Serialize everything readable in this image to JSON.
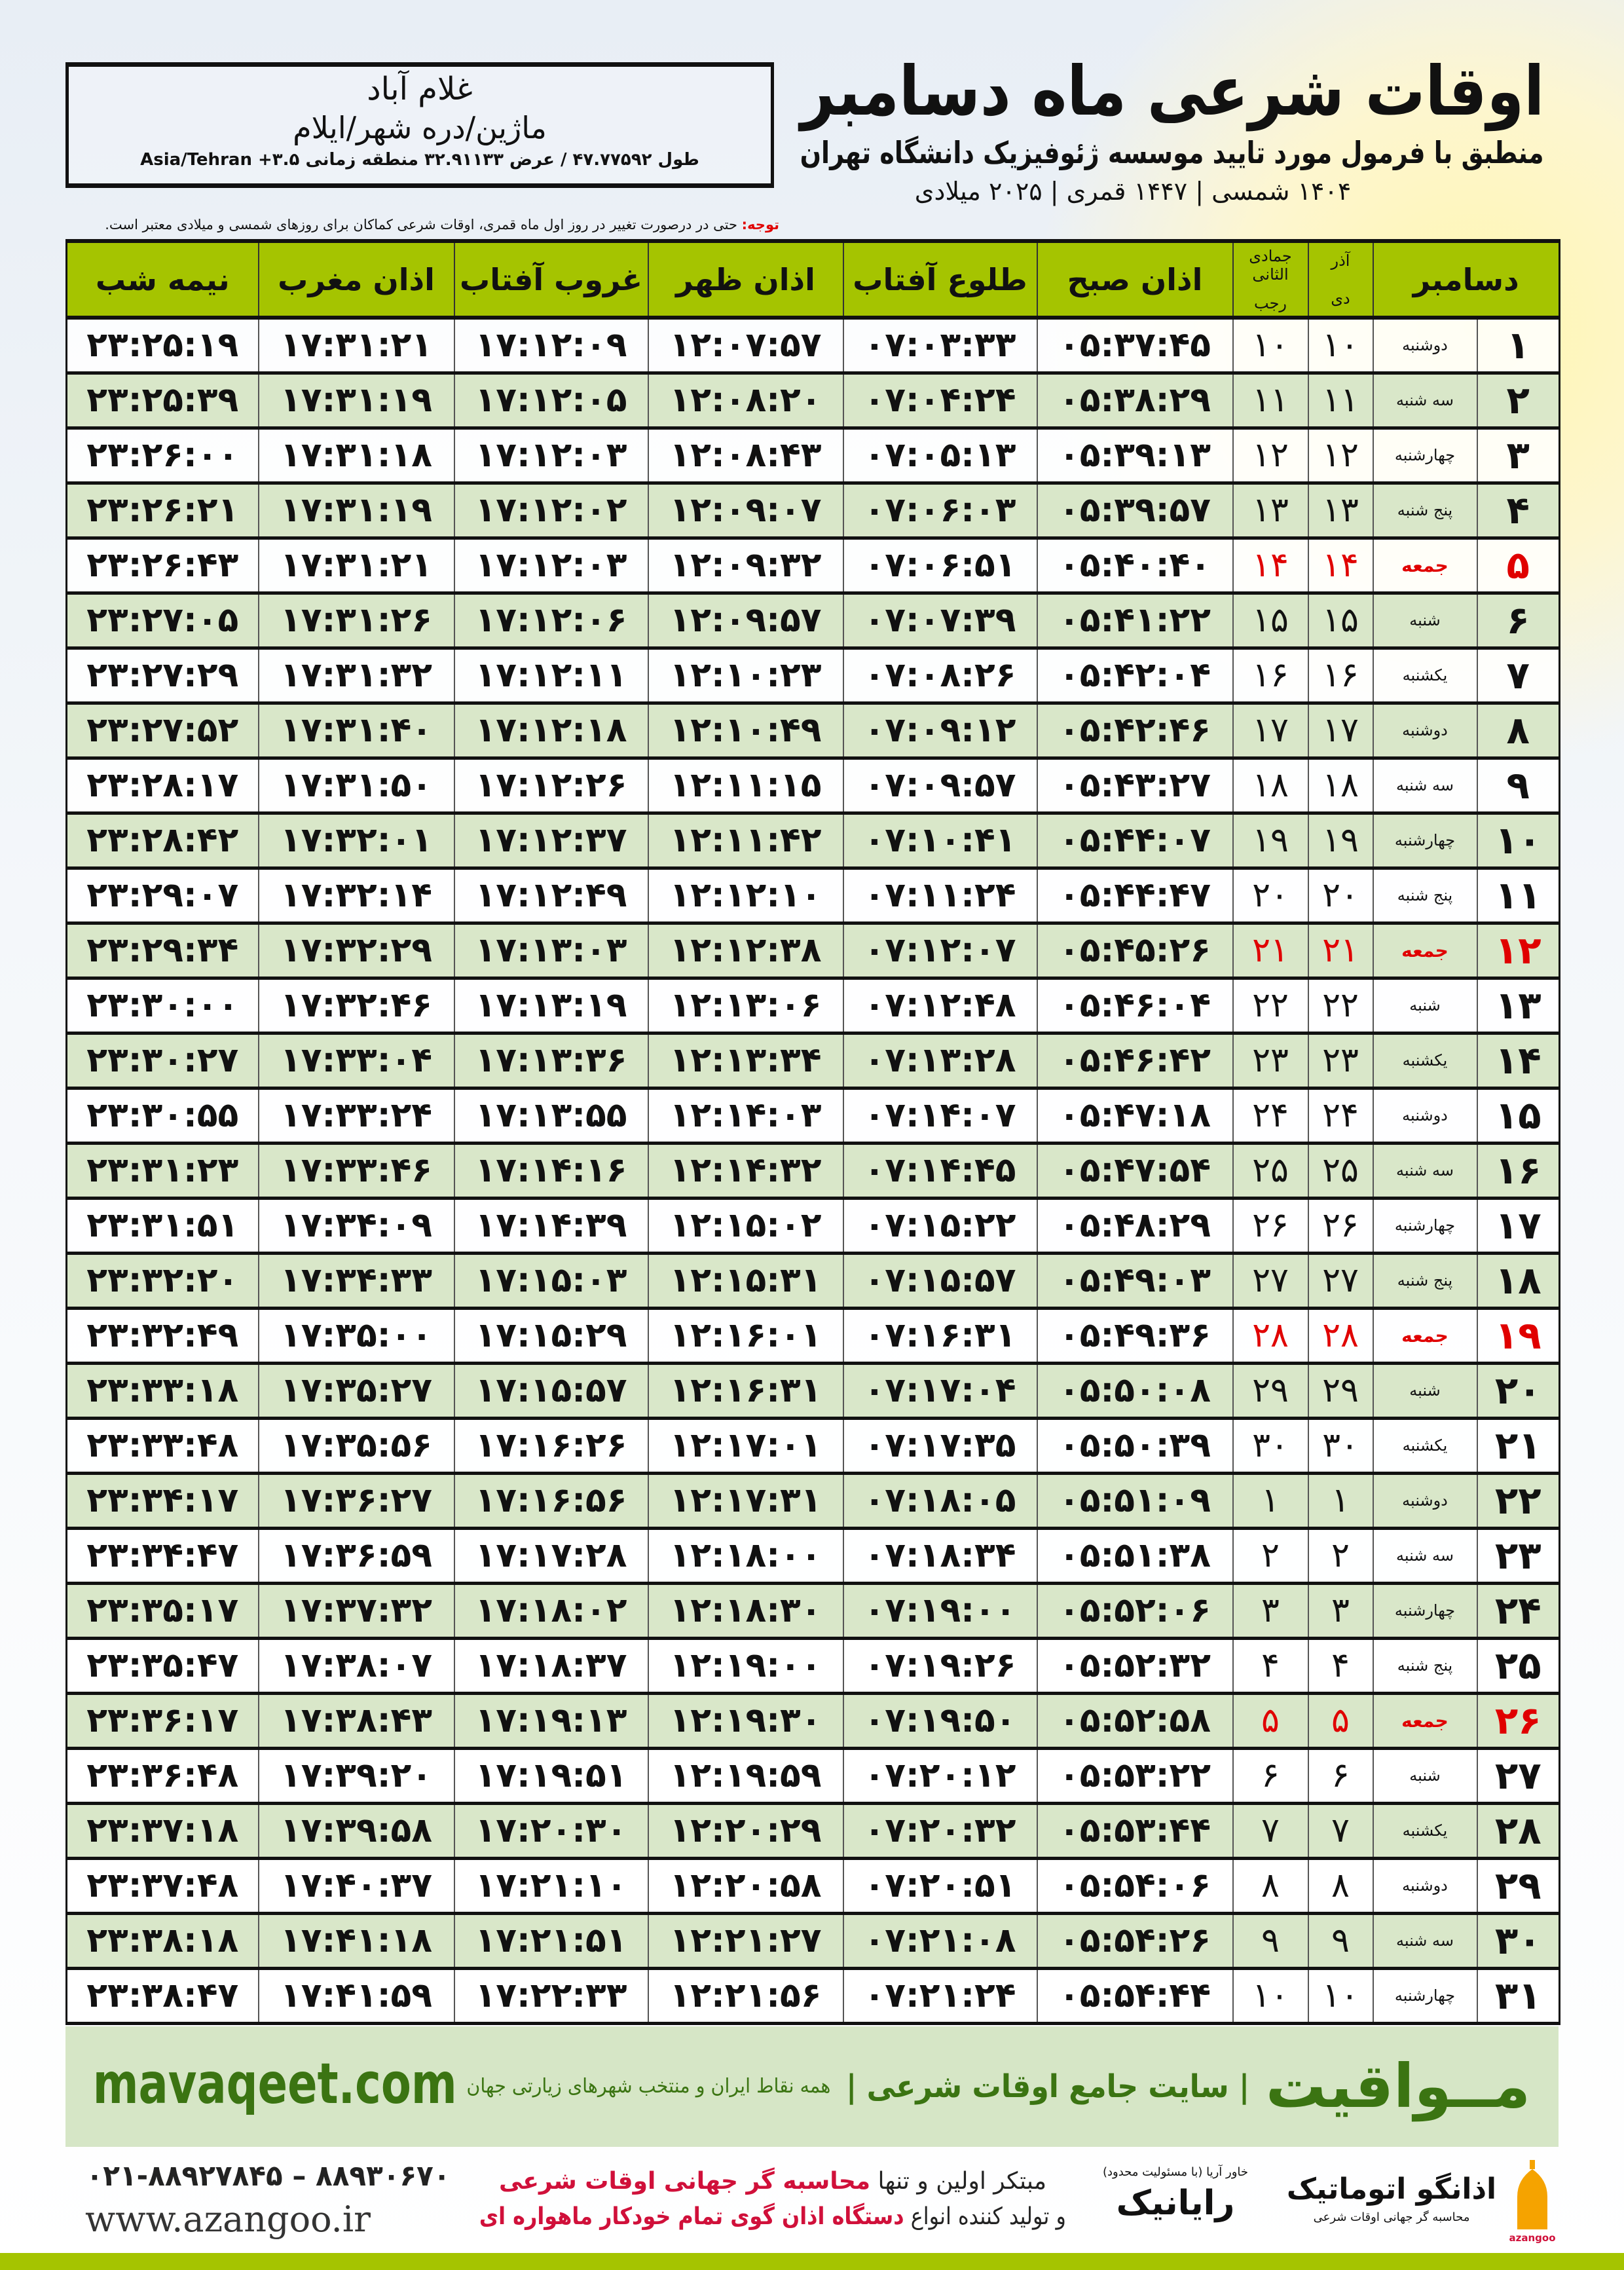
{
  "location": {
    "city": "غلام آباد",
    "region": "ماژین/دره شهر/ایلام",
    "coords": "طول ۴۷.۷۷۵۹۲ / عرض ۳۲.۹۱۱۳۳ منطقه زمانی ۳.۵+ Asia/Tehran"
  },
  "header": {
    "title": "اوقات شرعی ماه دسامبر",
    "subtitle": "منطبق با فرمول مورد تایید موسسه ژئوفیزیک دانشگاه تهران",
    "years": "۱۴۰۴ شمسی | ۱۴۴۷ قمری | ۲۰۲۵ میلادی"
  },
  "note": {
    "label": "توجه:",
    "text": " حتی در درصورت تغییر در روز اول ماه قمری، اوقات شرعی کماکان برای روزهای شمسی و میلادی معتبر است."
  },
  "table": {
    "columns": {
      "month": "دسامبر",
      "dey": "دی",
      "azar": "آذر",
      "jumada": "جمادی الثانی",
      "rajab": "رجب",
      "fajr": "اذان صبح",
      "sunrise": "طلوع آفتاب",
      "dhuhr": "اذان ظهر",
      "sunset": "غروب آفتاب",
      "maghrib": "اذان مغرب",
      "midnight": "نیمه شب"
    },
    "holiday_color": "#e00000",
    "header_color": "#a5c400",
    "rows": [
      [
        "۱",
        "دوشنبه",
        "۱۰",
        "۱۰",
        "۰۵:۳۷:۴۵",
        "۰۷:۰۳:۳۳",
        "۱۲:۰۷:۵۷",
        "۱۷:۱۲:۰۹",
        "۱۷:۳۱:۲۱",
        "۲۳:۲۵:۱۹",
        false
      ],
      [
        "۲",
        "سه شنبه",
        "۱۱",
        "۱۱",
        "۰۵:۳۸:۲۹",
        "۰۷:۰۴:۲۴",
        "۱۲:۰۸:۲۰",
        "۱۷:۱۲:۰۵",
        "۱۷:۳۱:۱۹",
        "۲۳:۲۵:۳۹",
        false
      ],
      [
        "۳",
        "چهارشنبه",
        "۱۲",
        "۱۲",
        "۰۵:۳۹:۱۳",
        "۰۷:۰۵:۱۳",
        "۱۲:۰۸:۴۳",
        "۱۷:۱۲:۰۳",
        "۱۷:۳۱:۱۸",
        "۲۳:۲۶:۰۰",
        false
      ],
      [
        "۴",
        "پنج شنبه",
        "۱۳",
        "۱۳",
        "۰۵:۳۹:۵۷",
        "۰۷:۰۶:۰۳",
        "۱۲:۰۹:۰۷",
        "۱۷:۱۲:۰۲",
        "۱۷:۳۱:۱۹",
        "۲۳:۲۶:۲۱",
        false
      ],
      [
        "۵",
        "جمعه",
        "۱۴",
        "۱۴",
        "۰۵:۴۰:۴۰",
        "۰۷:۰۶:۵۱",
        "۱۲:۰۹:۳۲",
        "۱۷:۱۲:۰۳",
        "۱۷:۳۱:۲۱",
        "۲۳:۲۶:۴۳",
        true
      ],
      [
        "۶",
        "شنبه",
        "۱۵",
        "۱۵",
        "۰۵:۴۱:۲۲",
        "۰۷:۰۷:۳۹",
        "۱۲:۰۹:۵۷",
        "۱۷:۱۲:۰۶",
        "۱۷:۳۱:۲۶",
        "۲۳:۲۷:۰۵",
        false
      ],
      [
        "۷",
        "یکشنبه",
        "۱۶",
        "۱۶",
        "۰۵:۴۲:۰۴",
        "۰۷:۰۸:۲۶",
        "۱۲:۱۰:۲۳",
        "۱۷:۱۲:۱۱",
        "۱۷:۳۱:۳۲",
        "۲۳:۲۷:۲۹",
        false
      ],
      [
        "۸",
        "دوشنبه",
        "۱۷",
        "۱۷",
        "۰۵:۴۲:۴۶",
        "۰۷:۰۹:۱۲",
        "۱۲:۱۰:۴۹",
        "۱۷:۱۲:۱۸",
        "۱۷:۳۱:۴۰",
        "۲۳:۲۷:۵۲",
        false
      ],
      [
        "۹",
        "سه شنبه",
        "۱۸",
        "۱۸",
        "۰۵:۴۳:۲۷",
        "۰۷:۰۹:۵۷",
        "۱۲:۱۱:۱۵",
        "۱۷:۱۲:۲۶",
        "۱۷:۳۱:۵۰",
        "۲۳:۲۸:۱۷",
        false
      ],
      [
        "۱۰",
        "چهارشنبه",
        "۱۹",
        "۱۹",
        "۰۵:۴۴:۰۷",
        "۰۷:۱۰:۴۱",
        "۱۲:۱۱:۴۲",
        "۱۷:۱۲:۳۷",
        "۱۷:۳۲:۰۱",
        "۲۳:۲۸:۴۲",
        false
      ],
      [
        "۱۱",
        "پنج شنبه",
        "۲۰",
        "۲۰",
        "۰۵:۴۴:۴۷",
        "۰۷:۱۱:۲۴",
        "۱۲:۱۲:۱۰",
        "۱۷:۱۲:۴۹",
        "۱۷:۳۲:۱۴",
        "۲۳:۲۹:۰۷",
        false
      ],
      [
        "۱۲",
        "جمعه",
        "۲۱",
        "۲۱",
        "۰۵:۴۵:۲۶",
        "۰۷:۱۲:۰۷",
        "۱۲:۱۲:۳۸",
        "۱۷:۱۳:۰۳",
        "۱۷:۳۲:۲۹",
        "۲۳:۲۹:۳۴",
        true
      ],
      [
        "۱۳",
        "شنبه",
        "۲۲",
        "۲۲",
        "۰۵:۴۶:۰۴",
        "۰۷:۱۲:۴۸",
        "۱۲:۱۳:۰۶",
        "۱۷:۱۳:۱۹",
        "۱۷:۳۲:۴۶",
        "۲۳:۳۰:۰۰",
        false
      ],
      [
        "۱۴",
        "یکشنبه",
        "۲۳",
        "۲۳",
        "۰۵:۴۶:۴۲",
        "۰۷:۱۳:۲۸",
        "۱۲:۱۳:۳۴",
        "۱۷:۱۳:۳۶",
        "۱۷:۳۳:۰۴",
        "۲۳:۳۰:۲۷",
        false
      ],
      [
        "۱۵",
        "دوشنبه",
        "۲۴",
        "۲۴",
        "۰۵:۴۷:۱۸",
        "۰۷:۱۴:۰۷",
        "۱۲:۱۴:۰۳",
        "۱۷:۱۳:۵۵",
        "۱۷:۳۳:۲۴",
        "۲۳:۳۰:۵۵",
        false
      ],
      [
        "۱۶",
        "سه شنبه",
        "۲۵",
        "۲۵",
        "۰۵:۴۷:۵۴",
        "۰۷:۱۴:۴۵",
        "۱۲:۱۴:۳۲",
        "۱۷:۱۴:۱۶",
        "۱۷:۳۳:۴۶",
        "۲۳:۳۱:۲۳",
        false
      ],
      [
        "۱۷",
        "چهارشنبه",
        "۲۶",
        "۲۶",
        "۰۵:۴۸:۲۹",
        "۰۷:۱۵:۲۲",
        "۱۲:۱۵:۰۲",
        "۱۷:۱۴:۳۹",
        "۱۷:۳۴:۰۹",
        "۲۳:۳۱:۵۱",
        false
      ],
      [
        "۱۸",
        "پنج شنبه",
        "۲۷",
        "۲۷",
        "۰۵:۴۹:۰۳",
        "۰۷:۱۵:۵۷",
        "۱۲:۱۵:۳۱",
        "۱۷:۱۵:۰۳",
        "۱۷:۳۴:۳۳",
        "۲۳:۳۲:۲۰",
        false
      ],
      [
        "۱۹",
        "جمعه",
        "۲۸",
        "۲۸",
        "۰۵:۴۹:۳۶",
        "۰۷:۱۶:۳۱",
        "۱۲:۱۶:۰۱",
        "۱۷:۱۵:۲۹",
        "۱۷:۳۵:۰۰",
        "۲۳:۳۲:۴۹",
        true
      ],
      [
        "۲۰",
        "شنبه",
        "۲۹",
        "۲۹",
        "۰۵:۵۰:۰۸",
        "۰۷:۱۷:۰۴",
        "۱۲:۱۶:۳۱",
        "۱۷:۱۵:۵۷",
        "۱۷:۳۵:۲۷",
        "۲۳:۳۳:۱۸",
        false
      ],
      [
        "۲۱",
        "یکشنبه",
        "۳۰",
        "۳۰",
        "۰۵:۵۰:۳۹",
        "۰۷:۱۷:۳۵",
        "۱۲:۱۷:۰۱",
        "۱۷:۱۶:۲۶",
        "۱۷:۳۵:۵۶",
        "۲۳:۳۳:۴۸",
        false
      ],
      [
        "۲۲",
        "دوشنبه",
        "۱",
        "۱",
        "۰۵:۵۱:۰۹",
        "۰۷:۱۸:۰۵",
        "۱۲:۱۷:۳۱",
        "۱۷:۱۶:۵۶",
        "۱۷:۳۶:۲۷",
        "۲۳:۳۴:۱۷",
        false
      ],
      [
        "۲۳",
        "سه شنبه",
        "۲",
        "۲",
        "۰۵:۵۱:۳۸",
        "۰۷:۱۸:۳۴",
        "۱۲:۱۸:۰۰",
        "۱۷:۱۷:۲۸",
        "۱۷:۳۶:۵۹",
        "۲۳:۳۴:۴۷",
        false
      ],
      [
        "۲۴",
        "چهارشنبه",
        "۳",
        "۳",
        "۰۵:۵۲:۰۶",
        "۰۷:۱۹:۰۰",
        "۱۲:۱۸:۳۰",
        "۱۷:۱۸:۰۲",
        "۱۷:۳۷:۳۲",
        "۲۳:۳۵:۱۷",
        false
      ],
      [
        "۲۵",
        "پنج شنبه",
        "۴",
        "۴",
        "۰۵:۵۲:۳۲",
        "۰۷:۱۹:۲۶",
        "۱۲:۱۹:۰۰",
        "۱۷:۱۸:۳۷",
        "۱۷:۳۸:۰۷",
        "۲۳:۳۵:۴۷",
        false
      ],
      [
        "۲۶",
        "جمعه",
        "۵",
        "۵",
        "۰۵:۵۲:۵۸",
        "۰۷:۱۹:۵۰",
        "۱۲:۱۹:۳۰",
        "۱۷:۱۹:۱۳",
        "۱۷:۳۸:۴۳",
        "۲۳:۳۶:۱۷",
        true
      ],
      [
        "۲۷",
        "شنبه",
        "۶",
        "۶",
        "۰۵:۵۳:۲۲",
        "۰۷:۲۰:۱۲",
        "۱۲:۱۹:۵۹",
        "۱۷:۱۹:۵۱",
        "۱۷:۳۹:۲۰",
        "۲۳:۳۶:۴۸",
        false
      ],
      [
        "۲۸",
        "یکشنبه",
        "۷",
        "۷",
        "۰۵:۵۳:۴۴",
        "۰۷:۲۰:۳۲",
        "۱۲:۲۰:۲۹",
        "۱۷:۲۰:۳۰",
        "۱۷:۳۹:۵۸",
        "۲۳:۳۷:۱۸",
        false
      ],
      [
        "۲۹",
        "دوشنبه",
        "۸",
        "۸",
        "۰۵:۵۴:۰۶",
        "۰۷:۲۰:۵۱",
        "۱۲:۲۰:۵۸",
        "۱۷:۲۱:۱۰",
        "۱۷:۴۰:۳۷",
        "۲۳:۳۷:۴۸",
        false
      ],
      [
        "۳۰",
        "سه شنبه",
        "۹",
        "۹",
        "۰۵:۵۴:۲۶",
        "۰۷:۲۱:۰۸",
        "۱۲:۲۱:۲۷",
        "۱۷:۲۱:۵۱",
        "۱۷:۴۱:۱۸",
        "۲۳:۳۸:۱۸",
        false
      ],
      [
        "۳۱",
        "چهارشنبه",
        "۱۰",
        "۱۰",
        "۰۵:۵۴:۴۴",
        "۰۷:۲۱:۲۴",
        "۱۲:۲۱:۵۶",
        "۱۷:۲۲:۳۳",
        "۱۷:۴۱:۵۹",
        "۲۳:۳۸:۴۷",
        false
      ]
    ]
  },
  "banner": {
    "brand": "مــواقیت",
    "slogan": "| سایت جامع اوقات شرعی |",
    "slogan2": "همه نقاط ایران و منتخب شهرهای زیارتی جهان",
    "site": "mavaqeet.com",
    "color": "#3b7412"
  },
  "footer": {
    "phone": "۰۲۱-۸۸۹۲۷۸۴۵ – ۸۸۹۳۰۶۷۰",
    "website": "www.azangoo.ir",
    "ad_line1_a": "مبتکر اولین و تنها ",
    "ad_line1_b": "محاسبه گر جهانی اوقات شرعی",
    "ad_line2_a": "و تولید کننده انواع ",
    "ad_line2_b": "دستگاه اذان گوی تمام خودکار ماهواره ای",
    "logo_rayanik": "رایانیک",
    "logo_rayanik_sub": "خاور آریا (با مسئولیت محدود)",
    "logo_azangoo": "اذانگو اتوماتیک",
    "logo_azangoo_sub": "محاسبه گر جهانی اوقات شرعی",
    "logo_azangoo_en": "azangoo"
  }
}
